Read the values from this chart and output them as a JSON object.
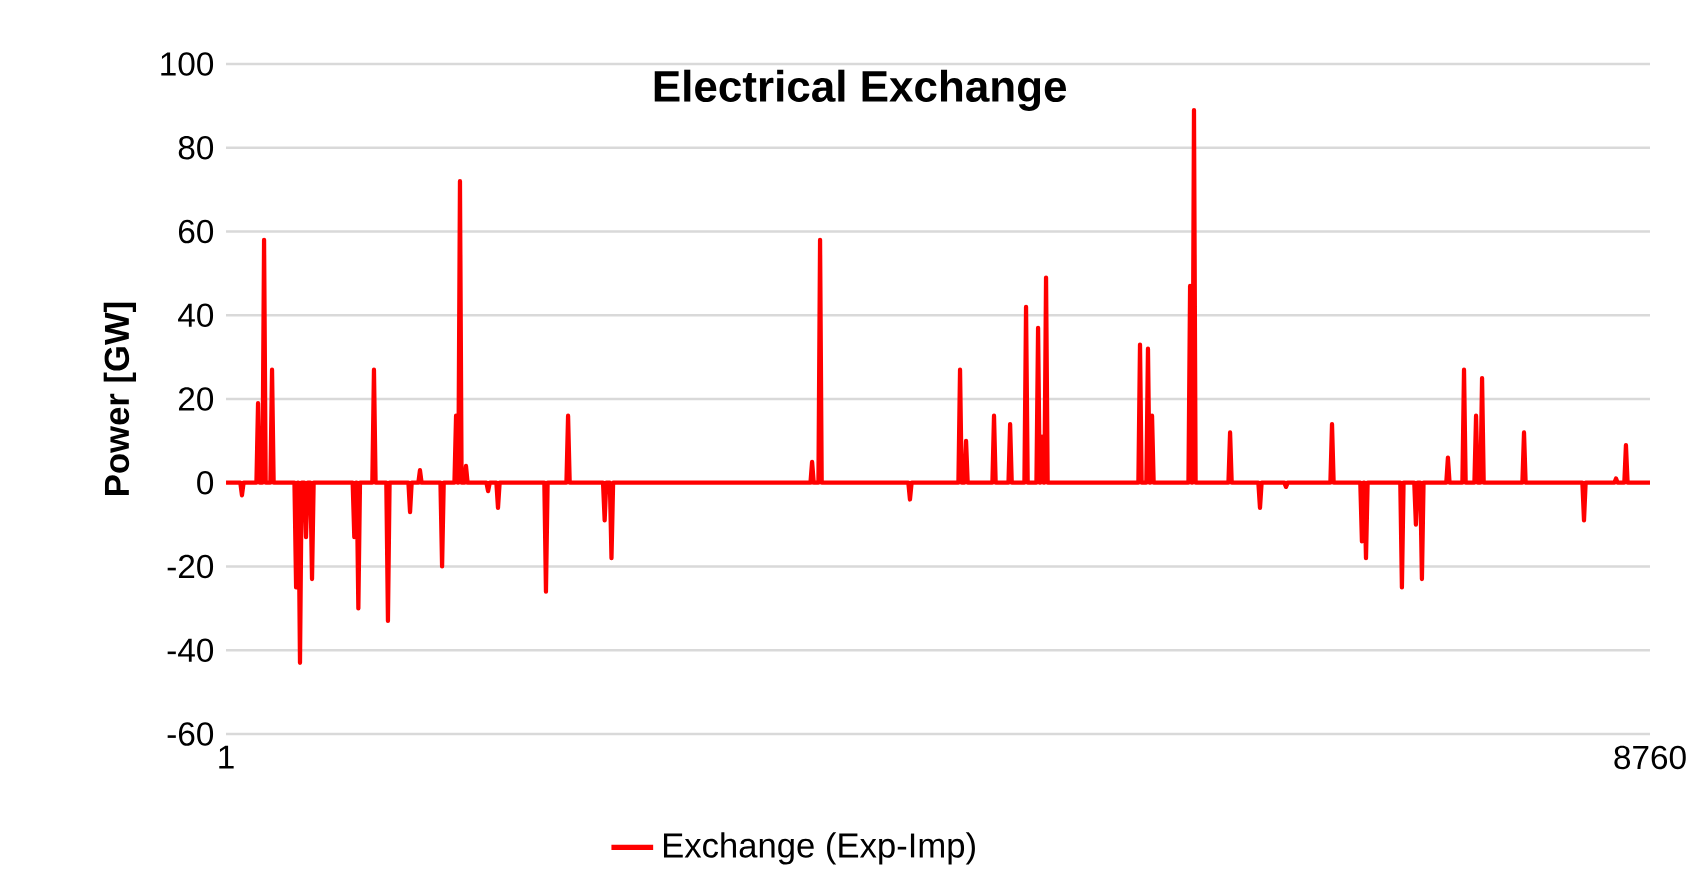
{
  "chart_data": {
    "type": "line",
    "title": "Electrical Exchange",
    "ylabel": "Power [GW]",
    "x": [
      1,
      89,
      99,
      109,
      188,
      198,
      208,
      225,
      235,
      245,
      274,
      284,
      294,
      422,
      432,
      442,
      446,
      456,
      466,
      483,
      493,
      503,
      520,
      530,
      540,
      780,
      790,
      800,
      805,
      815,
      825,
      901,
      911,
      921,
      987,
      997,
      1007,
      1123,
      1133,
      1143,
      1184,
      1194,
      1204,
      1320,
      1330,
      1340,
      1406,
      1416,
      1426,
      1430,
      1440,
      1450,
      1467,
      1477,
      1487,
      1603,
      1613,
      1623,
      1664,
      1674,
      1684,
      1959,
      1969,
      1979,
      2095,
      2105,
      2115,
      2320,
      2330,
      2340,
      2362,
      2372,
      2382,
      3596,
      3606,
      3616,
      3645,
      3655,
      3665,
      4198,
      4208,
      4218,
      4506,
      4516,
      4526,
      4543,
      4553,
      4563,
      4715,
      4725,
      4735,
      4814,
      4824,
      4834,
      4912,
      4922,
      4932,
      4986,
      4996,
      5006,
      5010,
      5020,
      5030,
      5035,
      5045,
      5055,
      5613,
      5623,
      5633,
      5662,
      5672,
      5682,
      5687,
      5697,
      5707,
      5921,
      5931,
      5941,
      5945,
      5955,
      5965,
      6167,
      6177,
      6187,
      6351,
      6361,
      6371,
      6511,
      6521,
      6531,
      6794,
      6804,
      6814,
      6978,
      6988,
      6998,
      7003,
      7013,
      7023,
      7224,
      7234,
      7244,
      7310,
      7320,
      7330,
      7347,
      7357,
      7367,
      7507,
      7517,
      7527,
      7606,
      7616,
      7626,
      7680,
      7690,
      7700,
      7717,
      7727,
      7737,
      7975,
      7985,
      7995,
      8344,
      8354,
      8364,
      8541,
      8551,
      8561,
      8602,
      8612,
      8622,
      8760
    ],
    "series": [
      {
        "name": "Exchange (Exp-Imp)",
        "color": "#ff0000",
        "values": [
          0,
          0,
          -3,
          0,
          0,
          19,
          0,
          0,
          58,
          0,
          0,
          27,
          0,
          0,
          -25,
          0,
          0,
          -43,
          0,
          0,
          -13,
          0,
          0,
          -23,
          0,
          0,
          -13,
          0,
          0,
          -30,
          0,
          0,
          27,
          0,
          0,
          -33,
          0,
          0,
          -7,
          0,
          0,
          3,
          0,
          0,
          -20,
          0,
          0,
          16,
          0,
          0,
          72,
          0,
          0,
          4,
          0,
          0,
          -2,
          0,
          0,
          -6,
          0,
          0,
          -26,
          0,
          0,
          16,
          0,
          0,
          -9,
          0,
          0,
          -18,
          0,
          0,
          5,
          0,
          0,
          58,
          0,
          0,
          -4,
          0,
          0,
          27,
          0,
          0,
          10,
          0,
          0,
          16,
          0,
          0,
          14,
          0,
          0,
          42,
          0,
          0,
          37,
          0,
          0,
          11,
          0,
          0,
          49,
          0,
          0,
          33,
          0,
          0,
          32,
          0,
          0,
          16,
          0,
          0,
          47,
          0,
          0,
          89,
          0,
          0,
          12,
          0,
          0,
          -6,
          0,
          0,
          -1,
          0,
          0,
          14,
          0,
          0,
          -14,
          0,
          0,
          -18,
          0,
          0,
          -25,
          0,
          0,
          -10,
          0,
          0,
          -23,
          0,
          0,
          6,
          0,
          0,
          27,
          0,
          0,
          16,
          0,
          0,
          25,
          0,
          0,
          12,
          0,
          0,
          -9,
          0,
          0,
          1,
          0,
          0,
          9,
          0,
          0
        ]
      }
    ],
    "xlim": [
      1,
      8760
    ],
    "xticks": [
      1,
      8760
    ],
    "ylim": [
      -60,
      100
    ],
    "yticks": [
      -60,
      -40,
      -20,
      0,
      20,
      40,
      60,
      80,
      100
    ],
    "grid": "y",
    "legend": "bottom"
  }
}
